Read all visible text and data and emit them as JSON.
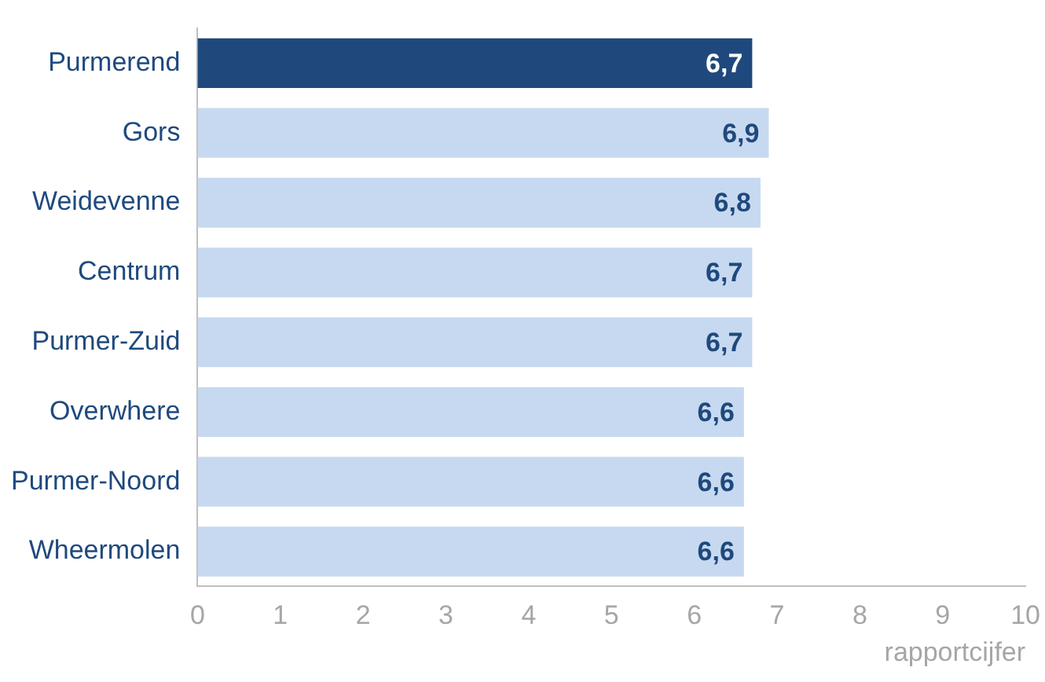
{
  "chart_data": {
    "type": "bar",
    "orientation": "horizontal",
    "xlabel": "rapportcijfer",
    "categories": [
      "Purmerend",
      "Gors",
      "Weidevenne",
      "Centrum",
      "Purmer-Zuid",
      "Overwhere",
      "Purmer-Noord",
      "Wheermolen"
    ],
    "values": [
      6.7,
      6.9,
      6.8,
      6.7,
      6.7,
      6.6,
      6.6,
      6.6
    ],
    "value_labels": [
      "6,7",
      "6,9",
      "6,8",
      "6,7",
      "6,7",
      "6,6",
      "6,6",
      "6,6"
    ],
    "colors": [
      "#1f497d",
      "#c6d9f0",
      "#c6d9f0",
      "#c6d9f0",
      "#c6d9f0",
      "#c6d9f0",
      "#c6d9f0",
      "#c6d9f0"
    ],
    "xlim": [
      0,
      10
    ],
    "xticks": [
      0,
      1,
      2,
      3,
      4,
      5,
      6,
      7,
      8,
      9,
      10
    ],
    "grid": false,
    "legend": false
  }
}
